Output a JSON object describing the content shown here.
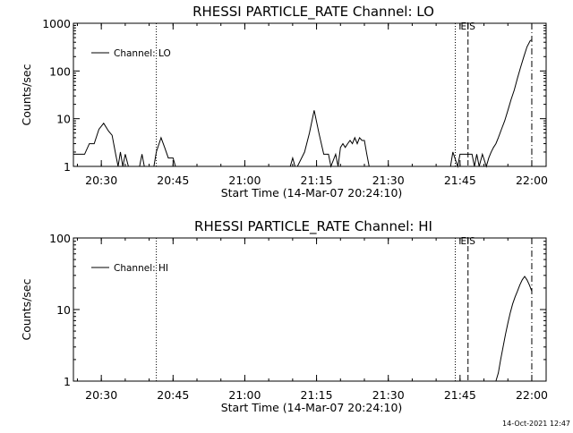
{
  "timestamp": "14-Oct-2021 12:47",
  "chart_data": [
    {
      "type": "line",
      "title": "RHESSI PARTICLE_RATE Channel: LO",
      "xlabel": "Start Time (14-Mar-07 20:24:10)",
      "ylabel": "Counts/sec",
      "yscale": "log",
      "ylim": [
        1,
        1000
      ],
      "yticks": [
        1,
        10,
        100,
        1000
      ],
      "ytick_labels": [
        "1",
        "10",
        "100",
        "1000"
      ],
      "xlim": [
        "20:24:10",
        "22:03:00"
      ],
      "xticks": [
        "20:30",
        "20:45",
        "21:00",
        "21:15",
        "21:30",
        "21:45",
        "22:00"
      ],
      "legend": {
        "label": "Channel: LO",
        "position": "top-left"
      },
      "vlines": [
        {
          "time": "20:41:30",
          "style": "dotted"
        },
        {
          "time": "21:44:00",
          "style": "dotted"
        },
        {
          "time": "21:46:40",
          "style": "dashed",
          "label": "EIS"
        },
        {
          "time": "22:00:00",
          "style": "dash-dot"
        }
      ],
      "series": [
        {
          "name": "Channel: LO",
          "x": [
            "20:24:10",
            "20:25:00",
            "20:26:30",
            "20:27:30",
            "20:28:30",
            "20:29:30",
            "20:30:30",
            "20:31:30",
            "20:32:15",
            "20:33:00",
            "20:33:30",
            "20:34:00",
            "20:34:30",
            "20:35:00",
            "20:35:40",
            "20:36:00",
            "20:38:00",
            "20:38:30",
            "20:39:00",
            "20:41:00",
            "20:41:30",
            "20:42:30",
            "20:43:15",
            "20:44:00",
            "20:45:00",
            "20:45:30",
            "20:46:00",
            "21:09:30",
            "21:10:00",
            "21:10:30",
            "21:11:00",
            "21:12:30",
            "21:13:30",
            "21:14:30",
            "21:15:30",
            "21:16:30",
            "21:17:30",
            "21:18:00",
            "21:19:00",
            "21:19:30",
            "21:20:00",
            "21:20:30",
            "21:21:00",
            "21:21:30",
            "21:22:00",
            "21:22:30",
            "21:23:00",
            "21:23:30",
            "21:24:00",
            "21:24:30",
            "21:25:00",
            "21:25:30",
            "21:26:00",
            "21:43:00",
            "21:43:30",
            "21:44:30",
            "21:45:00",
            "21:46:00",
            "21:47:00",
            "21:47:30",
            "21:48:00",
            "21:48:30",
            "21:49:00",
            "21:49:40",
            "21:50:30",
            "21:51:00",
            "21:51:30",
            "21:52:00",
            "21:52:30",
            "21:53:00",
            "21:53:40",
            "21:54:20",
            "21:55:00",
            "21:55:40",
            "21:56:20",
            "21:57:00",
            "21:57:40",
            "21:58:20",
            "21:59:00",
            "21:59:40",
            "22:00:00"
          ],
          "y": [
            1.8,
            1.8,
            1.8,
            3,
            3,
            6,
            8,
            5.5,
            4.5,
            1.8,
            1,
            2,
            1,
            1.8,
            1,
            1,
            1,
            1.8,
            1,
            1,
            2,
            4,
            2.5,
            1.5,
            1.5,
            1,
            1,
            1,
            1.5,
            1,
            1,
            2,
            5,
            15,
            5,
            1.8,
            1.8,
            1,
            1.8,
            1,
            2.5,
            3,
            2.5,
            3,
            3.5,
            3,
            4,
            3,
            4,
            3.5,
            3.5,
            1.8,
            1,
            1,
            2,
            1,
            1.8,
            1.8,
            1.8,
            1.8,
            1,
            1.8,
            1,
            1.8,
            1,
            1.5,
            2,
            2.5,
            3,
            4,
            6,
            9,
            15,
            25,
            40,
            70,
            120,
            200,
            320,
            430,
            450
          ]
        }
      ]
    },
    {
      "type": "line",
      "title": "RHESSI PARTICLE_RATE Channel: HI",
      "xlabel": "Start Time (14-Mar-07 20:24:10)",
      "ylabel": "Counts/sec",
      "yscale": "log",
      "ylim": [
        1,
        100
      ],
      "yticks": [
        1,
        10,
        100
      ],
      "ytick_labels": [
        "1",
        "10",
        "100"
      ],
      "xlim": [
        "20:24:10",
        "22:03:00"
      ],
      "xticks": [
        "20:30",
        "20:45",
        "21:00",
        "21:15",
        "21:30",
        "21:45",
        "22:00"
      ],
      "legend": {
        "label": "Channel: HI",
        "position": "top-left"
      },
      "vlines": [
        {
          "time": "20:41:30",
          "style": "dotted"
        },
        {
          "time": "21:44:00",
          "style": "dotted"
        },
        {
          "time": "21:46:40",
          "style": "dashed",
          "label": "EIS"
        },
        {
          "time": "22:00:00",
          "style": "dash-dot"
        }
      ],
      "series": [
        {
          "name": "Channel: HI",
          "x": [
            "21:52:30",
            "21:53:00",
            "21:53:30",
            "21:54:00",
            "21:54:30",
            "21:55:00",
            "21:55:30",
            "21:56:00",
            "21:56:30",
            "21:57:00",
            "21:57:30",
            "21:58:00",
            "21:58:30",
            "21:59:00",
            "21:59:30",
            "22:00:00"
          ],
          "y": [
            1,
            1.3,
            2,
            3,
            4.5,
            6.5,
            9,
            12,
            15,
            18,
            22,
            26,
            29,
            26,
            22,
            18
          ]
        }
      ]
    }
  ]
}
